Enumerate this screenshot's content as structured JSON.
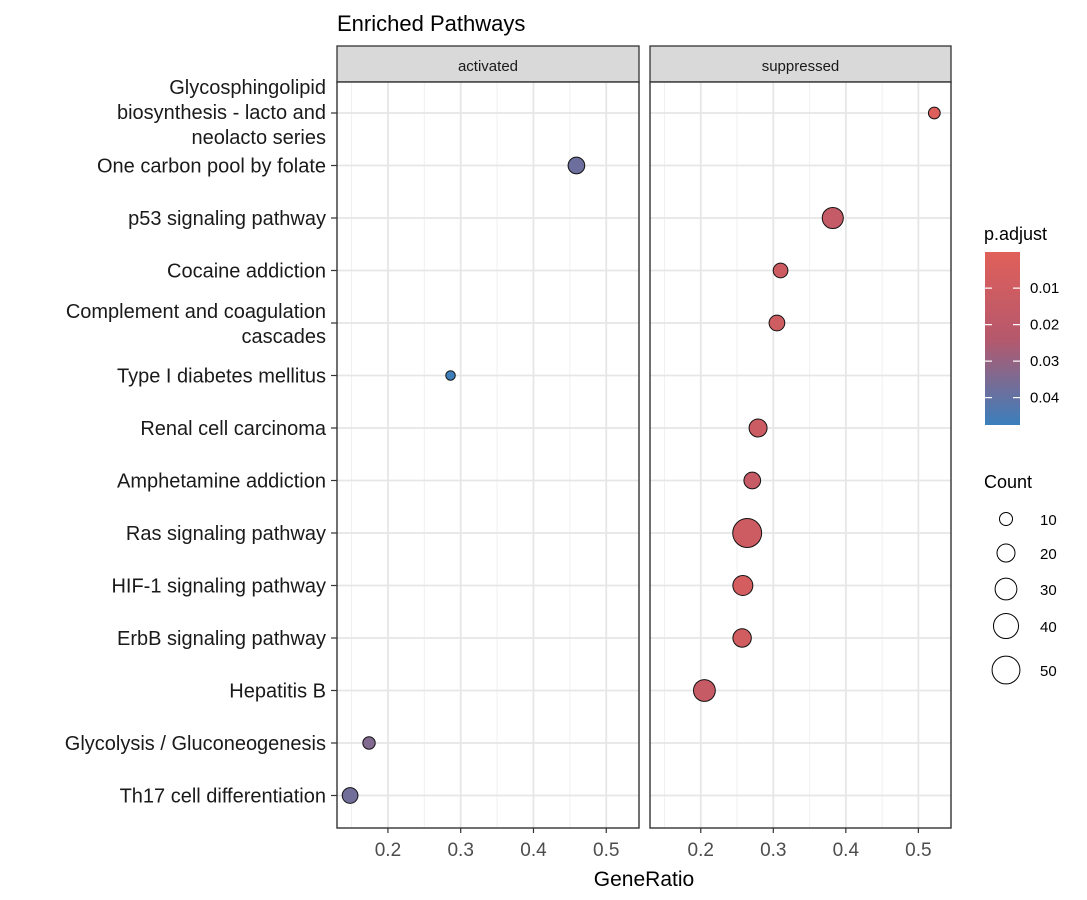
{
  "chart_data": {
    "type": "scatter",
    "title": "Enriched Pathways",
    "xlabel": "GeneRatio",
    "ylabel": "",
    "panels": [
      "activated",
      "suppressed"
    ],
    "xlim": [
      0.13,
      0.545
    ],
    "xticks": [
      0.2,
      0.3,
      0.4,
      0.5
    ],
    "xtick_labels": [
      "0.2",
      "0.3",
      "0.4",
      "0.5"
    ],
    "categories": [
      "Glycosphingolipid biosynthesis - lacto and neolacto series",
      "One carbon pool by folate",
      "p53 signaling pathway",
      "Cocaine addiction",
      "Complement and coagulation cascades",
      "Type I diabetes mellitus",
      "Renal cell carcinoma",
      "Amphetamine addiction",
      "Ras signaling pathway",
      "HIF-1 signaling pathway",
      "ErbB signaling pathway",
      "Hepatitis B",
      "Glycolysis / Gluconeogenesis",
      "Th17 cell differentiation"
    ],
    "category_lines": [
      [
        "Glycosphingolipid",
        "biosynthesis - lacto and",
        "neolacto series"
      ],
      [
        "One carbon pool by folate"
      ],
      [
        "p53 signaling pathway"
      ],
      [
        "Cocaine addiction"
      ],
      [
        "Complement and coagulation",
        "cascades"
      ],
      [
        "Type I diabetes mellitus"
      ],
      [
        "Renal cell carcinoma"
      ],
      [
        "Amphetamine addiction"
      ],
      [
        "Ras signaling pathway"
      ],
      [
        "HIF-1 signaling pathway"
      ],
      [
        "ErbB signaling pathway"
      ],
      [
        "Hepatitis B"
      ],
      [
        "Glycolysis / Gluconeogenesis"
      ],
      [
        "Th17 cell differentiation"
      ]
    ],
    "points": [
      {
        "panel": "suppressed",
        "category": "Glycosphingolipid biosynthesis - lacto and neolacto series",
        "gene_ratio": 0.522,
        "count": 8,
        "p_adjust": 0.0022
      },
      {
        "panel": "activated",
        "category": "One carbon pool by folate",
        "gene_ratio": 0.459,
        "count": 17,
        "p_adjust": 0.038
      },
      {
        "panel": "suppressed",
        "category": "p53 signaling pathway",
        "gene_ratio": 0.382,
        "count": 28,
        "p_adjust": 0.016
      },
      {
        "panel": "suppressed",
        "category": "Cocaine addiction",
        "gene_ratio": 0.31,
        "count": 13,
        "p_adjust": 0.011
      },
      {
        "panel": "suppressed",
        "category": "Complement and coagulation cascades",
        "gene_ratio": 0.305,
        "count": 15,
        "p_adjust": 0.01
      },
      {
        "panel": "activated",
        "category": "Type I diabetes mellitus",
        "gene_ratio": 0.286,
        "count": 5,
        "p_adjust": 0.047
      },
      {
        "panel": "suppressed",
        "category": "Renal cell carcinoma",
        "gene_ratio": 0.279,
        "count": 20,
        "p_adjust": 0.012
      },
      {
        "panel": "suppressed",
        "category": "Amphetamine addiction",
        "gene_ratio": 0.271,
        "count": 17,
        "p_adjust": 0.015
      },
      {
        "panel": "suppressed",
        "category": "Ras signaling pathway",
        "gene_ratio": 0.264,
        "count": 54,
        "p_adjust": 0.011
      },
      {
        "panel": "suppressed",
        "category": "HIF-1 signaling pathway",
        "gene_ratio": 0.258,
        "count": 25,
        "p_adjust": 0.007
      },
      {
        "panel": "suppressed",
        "category": "ErbB signaling pathway",
        "gene_ratio": 0.257,
        "count": 21,
        "p_adjust": 0.008
      },
      {
        "panel": "suppressed",
        "category": "Hepatitis B",
        "gene_ratio": 0.205,
        "count": 30,
        "p_adjust": 0.014
      },
      {
        "panel": "activated",
        "category": "Glycolysis / Gluconeogenesis",
        "gene_ratio": 0.174,
        "count": 9,
        "p_adjust": 0.034
      },
      {
        "panel": "activated",
        "category": "Th17 cell differentiation",
        "gene_ratio": 0.148,
        "count": 15,
        "p_adjust": 0.037
      }
    ],
    "color_legend": {
      "title": "p.adjust",
      "range": [
        0.0001,
        0.0475
      ],
      "ticks": [
        0.01,
        0.02,
        0.03,
        0.04
      ],
      "tick_labels": [
        "0.01",
        "0.02",
        "0.03",
        "0.04"
      ],
      "low_color": "#e0605a",
      "mid_color": "#b6586c",
      "high_color": "#3b7fbd"
    },
    "size_legend": {
      "title": "Count",
      "values": [
        10,
        20,
        30,
        40,
        50
      ],
      "labels": [
        "10",
        "20",
        "30",
        "40",
        "50"
      ]
    },
    "grid": true,
    "legend_position": "right"
  }
}
